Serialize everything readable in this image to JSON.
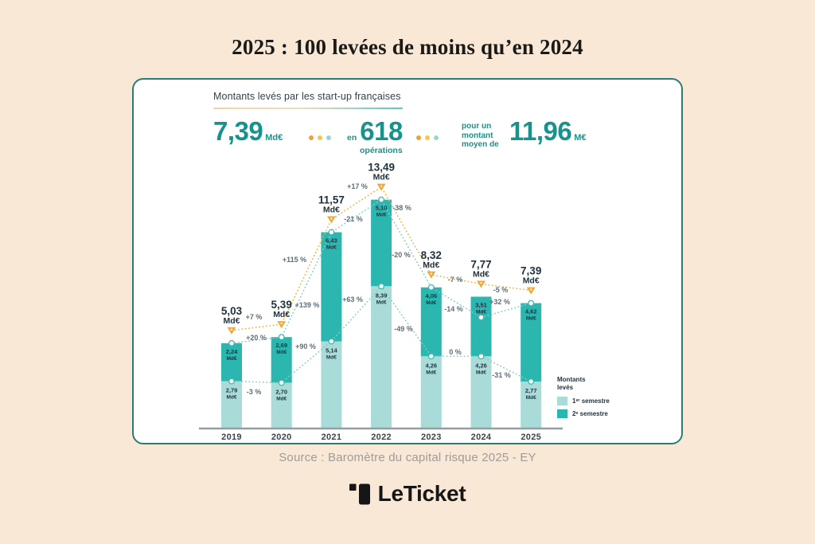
{
  "page": {
    "title": "2025 : 100 levées de moins qu’en 2024",
    "background": "#fae8d6"
  },
  "card": {
    "header": "Montants levés par les start-up françaises",
    "stats": {
      "raised": {
        "value": "7,39",
        "unit": "Md€"
      },
      "separator_dots": [
        "#eda13f",
        "#f3c84b",
        "#9bd5d1"
      ],
      "operations": {
        "prefix": "en",
        "value": "618",
        "label": "opérations"
      },
      "average": {
        "prefix": "pour un montant moyen de",
        "value": "11,96",
        "unit": "M€"
      }
    },
    "legend": {
      "title": "Montants levés",
      "items": [
        {
          "label": "1ᵉʳ semestre",
          "color": "#a9dbd8"
        },
        {
          "label": "2ᵉ semestre",
          "color": "#2bb6af"
        }
      ]
    }
  },
  "chart_data": {
    "type": "bar",
    "stacked": true,
    "title": "Montants levés par les start-up françaises",
    "unit": "Md€",
    "ylim": [
      0,
      14
    ],
    "categories": [
      "2019",
      "2020",
      "2021",
      "2022",
      "2023",
      "2024",
      "2025"
    ],
    "series": [
      {
        "name": "1ᵉʳ semestre",
        "color": "#a9dbd8",
        "values": [
          2.79,
          2.7,
          5.14,
          8.39,
          4.26,
          4.26,
          2.77
        ],
        "labels": [
          "2,79",
          "2,70",
          "5,14",
          "8,39",
          "4,26",
          "4,26",
          "2,77"
        ],
        "pct_changes": [
          "-3 %",
          "+90 %",
          "+63 %",
          "-49 %",
          "0 %",
          "-31 %"
        ]
      },
      {
        "name": "2ᵉ semestre",
        "color": "#2bb6af",
        "values": [
          2.24,
          2.69,
          6.43,
          5.1,
          4.06,
          3.51,
          4.62
        ],
        "labels": [
          "2,24",
          "2,69",
          "6,43",
          "5,10",
          "4,06",
          "3,51",
          "4,62"
        ],
        "pct_changes": [
          "+20 %",
          "+139 %",
          "-21 %",
          "-20 %",
          "-14 %",
          "+32 %"
        ]
      }
    ],
    "totals": {
      "values": [
        5.03,
        5.39,
        11.57,
        13.49,
        8.32,
        7.77,
        7.39
      ],
      "labels": [
        "5,03",
        "5,39",
        "11,57",
        "13,49",
        "8,32",
        "7,77",
        "7,39"
      ],
      "pct_changes": [
        "+7 %",
        "+115 %",
        "+17 %",
        "-38 %",
        "-7 %",
        "-5 %"
      ]
    },
    "colors": {
      "total_line": "#f0b23f",
      "triangle": "#f0a93c",
      "semester_line": "#85ccc6",
      "marker_stroke": "#3fb8b0",
      "bar_label": "#1f3240",
      "total_label": "#20323f",
      "pct_label": "#5f6d77",
      "axis": "#969da3",
      "year_label": "#39454e"
    }
  },
  "footer": {
    "source": "Source : Baromètre du capital risque 2025 - EY"
  },
  "logo": {
    "le": "Le",
    "ticket": "Ticket"
  }
}
